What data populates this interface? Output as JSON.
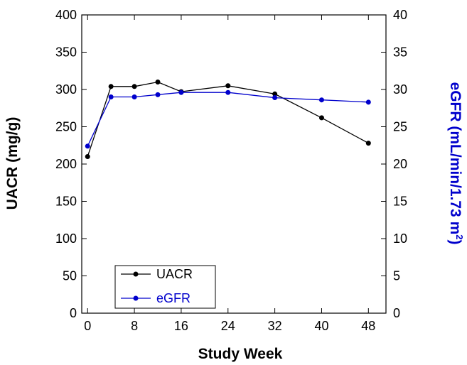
{
  "chart_data": {
    "type": "line",
    "x": [
      0,
      4,
      8,
      12,
      16,
      24,
      32,
      40,
      48
    ],
    "xlabel": "Study Week",
    "xlim": [
      -1,
      51
    ],
    "xticks": [
      0,
      8,
      16,
      24,
      32,
      40,
      48
    ],
    "ylabel_left": "UACR (mg/g)",
    "ylim_left": [
      0,
      400
    ],
    "yticks_left": [
      0,
      50,
      100,
      150,
      200,
      250,
      300,
      350,
      400
    ],
    "ylabel_right": "eGFR (mL/min/1.73 m²)",
    "ylabel_right_main": "eGFR (mL/min/1.73 m",
    "ylabel_right_sup": "2",
    "ylabel_right_close": ")",
    "ylim_right": [
      0,
      40
    ],
    "yticks_right": [
      0,
      5,
      10,
      15,
      20,
      25,
      30,
      35,
      40
    ],
    "grid": false,
    "legend_position": "bottom-left",
    "series": [
      {
        "name": "UACR",
        "axis": "left",
        "color": "#000000",
        "values": [
          210,
          304,
          304,
          310,
          297,
          305,
          294,
          262,
          228
        ]
      },
      {
        "name": "eGFR",
        "axis": "right",
        "color": "#0000cc",
        "values": [
          22.4,
          29.0,
          29.0,
          29.3,
          29.6,
          29.6,
          28.9,
          28.6,
          28.3
        ]
      }
    ]
  }
}
